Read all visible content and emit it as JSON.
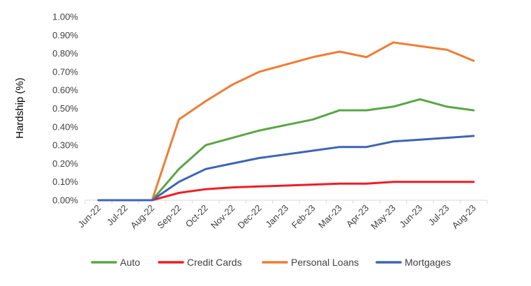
{
  "chart_data": {
    "type": "line",
    "ylabel": "Hardship (%)",
    "xlabel": "",
    "categories": [
      "Jun-22",
      "Jul-22",
      "Aug-22",
      "Sep-22",
      "Oct-22",
      "Nov-22",
      "Dec-22",
      "Jan-23",
      "Feb-23",
      "Mar-23",
      "Apr-23",
      "May-23",
      "Jun-23",
      "Jul-23",
      "Aug-23"
    ],
    "y_ticks": [
      "0.00%",
      "0.10%",
      "0.20%",
      "0.30%",
      "0.40%",
      "0.50%",
      "0.60%",
      "0.70%",
      "0.80%",
      "0.90%",
      "1.00%"
    ],
    "ylim": [
      0,
      1.0
    ],
    "grid": false,
    "legend_position": "bottom",
    "series": [
      {
        "name": "Auto",
        "color": "#5aa545",
        "values": [
          0,
          0,
          0,
          0.17,
          0.3,
          0.34,
          0.38,
          0.41,
          0.44,
          0.49,
          0.49,
          0.51,
          0.55,
          0.51,
          0.49
        ]
      },
      {
        "name": "Credit Cards",
        "color": "#ee1d25",
        "values": [
          0,
          0,
          0,
          0.04,
          0.06,
          0.07,
          0.075,
          0.08,
          0.085,
          0.09,
          0.09,
          0.1,
          0.1,
          0.1,
          0.1
        ]
      },
      {
        "name": "Personal Loans",
        "color": "#f07c35",
        "values": [
          0,
          0,
          0,
          0.44,
          0.54,
          0.63,
          0.7,
          0.74,
          0.78,
          0.81,
          0.78,
          0.86,
          0.84,
          0.82,
          0.76
        ]
      },
      {
        "name": "Mortgages",
        "color": "#3d64b5",
        "values": [
          0,
          0,
          0,
          0.1,
          0.17,
          0.2,
          0.23,
          0.25,
          0.27,
          0.29,
          0.29,
          0.32,
          0.33,
          0.34,
          0.35
        ]
      }
    ]
  }
}
